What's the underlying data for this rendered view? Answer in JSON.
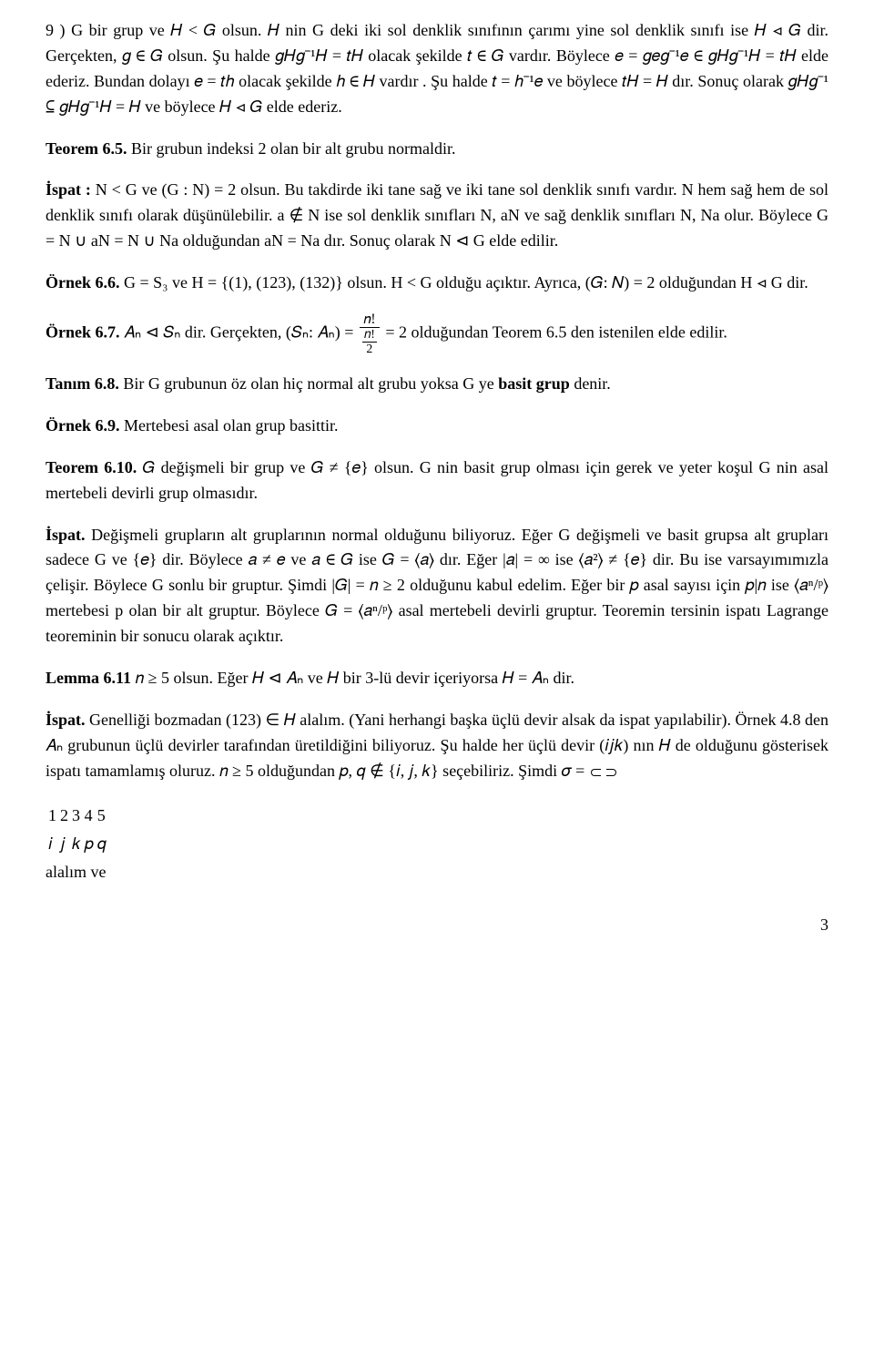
{
  "paragraphs": {
    "p1": "9 ) G   bir grup ve 𝐻 < 𝐺   olsun. 𝐻  nin G  deki iki sol denklik sınıfının çarımı yine sol denklik sınıfı ise 𝐻 ⊲ 𝐺 dir. Gerçekten, 𝑔 ∈ 𝐺 olsun. Şu halde 𝑔𝐻𝑔⁻¹𝐻 = 𝑡𝐻 olacak şekilde 𝑡 ∈ 𝐺   vardır. Böylece  𝑒 = 𝑔𝑒𝑔⁻¹𝑒 ∈ 𝑔𝐻𝑔⁻¹𝐻 = 𝑡𝐻   elde ederiz.   Bundan dolayı  𝑒 = 𝑡ℎ  olacak şekilde  ℎ ∈ 𝐻    vardır . Şu halde  𝑡 = ℎ⁻¹𝑒   ve böylece  𝑡𝐻 = 𝐻   dır.  Sonuç olarak  𝑔𝐻𝑔⁻¹ ⊆ 𝑔𝐻𝑔⁻¹𝐻  = 𝐻  ve böylece 𝐻 ⊲ 𝐺 elde ederiz.",
    "p2_label": "Teorem 6.5.",
    "p2_text": " Bir grubun indeksi 2 olan bir alt grubu normaldir.",
    "p3_label": "İspat :",
    "p3_text": "  N < G   ve  (G : N) = 2  olsun. Bu takdirde iki tane sağ ve  iki tane sol denklik sınıfı vardır.  N  hem sağ  hem  de  sol  denklik   sınıfı  olarak  düşünülebilir. a ∉ N  ise  sol  denklik sınıfları  N, aN   ve  sağ  denklik  sınıfları   N, Na   olur.  Böylece   G = N ∪ aN = N ∪ Na olduğundan  aN = Na  dır. Sonuç olarak  N ⊲ G  elde edilir.",
    "p4_label": "Örnek  6.6.",
    "p4_text": "  G = S₃  ve  H = {(1), (123), (132)} olsun.  H < G olduğu açıktır.  Ayrıca,  (𝐺: 𝑁) = 2  olduğundan  H ⊲ G  dir.",
    "p5_label": "Örnek  6.7.",
    "p5_pre": "   𝐴ₙ ⊲ 𝑆ₙ    dir.   Gerçekten,   (𝑆ₙ: 𝐴ₙ) = ",
    "frac_num": "𝑛!",
    "frac_den_num": "𝑛!",
    "frac_den_den": "2",
    "p5_post": " = 2   olduğundan  Teorem  6.5  den istenilen elde edilir.",
    "p6_label": "Tanım 6.8.",
    "p6_pre": " Bir  G  grubunun öz olan hiç normal alt grubu yoksa  G  ye ",
    "p6_bold": "basit grup",
    "p6_post": " denir.",
    "p7_label": "Örnek 6.9.",
    "p7_text": "  Mertebesi asal olan grup basittir.",
    "p8_label": "Teorem 6.10.",
    "p8_text": "  𝐺  değişmeli bir grup ve 𝐺 ≠ {𝑒}  olsun.  G   nin basit grup olması için gerek ve yeter koşul G  nin asal mertebeli devirli grup olmasıdır.",
    "p9_label": "İspat.",
    "p9_text": "  Değişmeli grupların alt gruplarının normal olduğunu biliyoruz. Eğer G  değişmeli ve basit grupsa alt grupları sadece G  ve {𝑒}  dir.  Böylece  𝑎 ≠ 𝑒   ve  𝑎 ∈ 𝐺   ise 𝐺 = ⟨𝑎⟩   dır. Eğer |𝑎| = ∞ ise ⟨𝑎²⟩ ≠ {𝑒}  dir. Bu ise varsayımımızla çelişir. Böylece G   sonlu bir gruptur. Şimdi  |𝐺| = 𝑛 ≥ 2    olduğunu  kabul  edelim.  Eğer  bir  𝑝  asal  sayısı  için  𝑝|𝑛  ise  ⟨𝑎ⁿ/ᵖ⟩ mertebesi p olan bir alt gruptur. Böylece 𝐺 = ⟨𝑎ⁿ/ᵖ⟩ asal mertebeli devirli gruptur. Teoremin tersinin ispatı Lagrange teoreminin bir sonucu olarak açıktır.",
    "p10_label": "Lemma 6.11",
    "p10_text": " 𝑛 ≥ 5  olsun. Eğer 𝐻 ⊲ 𝐴ₙ ve 𝐻  bir 3-lü devir içeriyorsa 𝐻 = 𝐴ₙ   dir.",
    "p11_label": "İspat.",
    "p11_pre": "  Genelliği bozmadan  (123) ∈ 𝐻 alalım. (Yani herhangi başka üçlü devir alsak da ispat yapılabilir).  Örnek 4.8 den 𝐴ₙ   grubunun  üçlü devirler tarafından  üretildiğini  biliyoruz. Şu halde her üçlü devir (𝑖𝑗𝑘) nın  𝐻 de olduğunu gösterisek ispatı tamamlamış oluruz. 𝑛 ≥ 5 olduğundan 𝑝, 𝑞 ∉ {𝑖, 𝑗, 𝑘}  seçebiliriz. Şimdi 𝜎 = ",
    "p11_post": " alalım ve",
    "matrix_row1": [
      "1",
      "2",
      "3",
      "4",
      "5"
    ],
    "matrix_row2": [
      "𝑖",
      "𝑗",
      "𝑘",
      "𝑝",
      "𝑞"
    ]
  },
  "page_number": "3"
}
